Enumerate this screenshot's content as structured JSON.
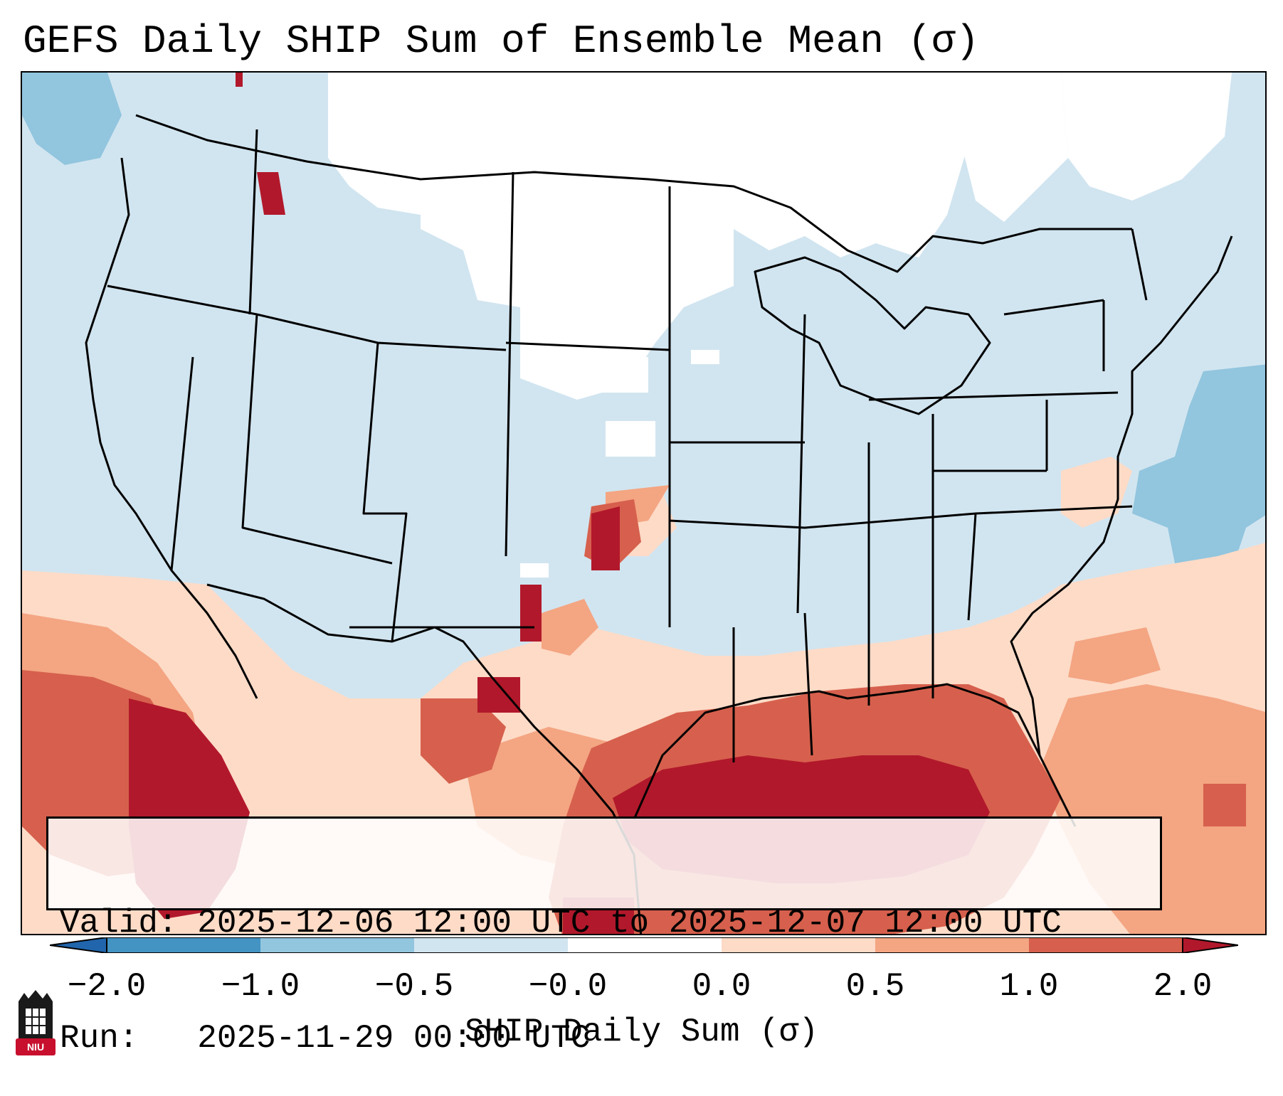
{
  "title": "GEFS Daily SHIP Sum of Ensemble Mean (σ)",
  "info": {
    "valid_label": "Valid:",
    "valid_value": "2025-12-06 12:00 UTC to 2025-12-07 12:00 UTC",
    "run_label": "Run:",
    "run_value": "2025-11-29 00:00 UTC"
  },
  "colorbar": {
    "label": "SHIP Daily Sum (σ)",
    "ticks": [
      "−2.0",
      "−1.0",
      "−0.5",
      "−0.0",
      "0.0",
      "0.5",
      "1.0",
      "2.0"
    ],
    "colors": [
      "#4393c3",
      "#92c5de",
      "#d1e5f0",
      "#ffffff",
      "#fddbc7",
      "#f4a582",
      "#d6604d",
      "#b2182b"
    ],
    "extend": "both"
  },
  "logo": {
    "text": "NIU"
  },
  "map_colors": {
    "neutral_low": "#d1e5f0",
    "neutral_zero": "#ffffff",
    "low_neg": "#92c5de",
    "pos_low": "#fddbc7",
    "pos_mid": "#f4a582",
    "pos_high": "#d6604d",
    "pos_max": "#b2182b",
    "boundary": "#000000"
  }
}
